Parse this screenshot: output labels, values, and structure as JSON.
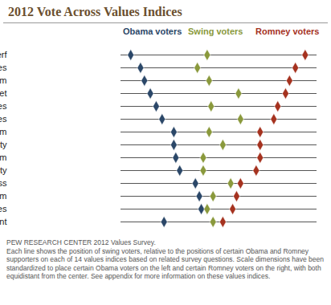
{
  "chart_data": {
    "type": "dot",
    "title": "2012 Vote Across Values Indices",
    "categories": [
      "Govt scope & perf",
      "Labor attitudes",
      "Environmentalism",
      "Social safety net",
      "Business attitudes",
      "Immigration attitudes",
      "Efficacy vs. fatalism",
      "National security",
      "Social conservatism",
      "Religiosity",
      "Govt responsiveness",
      "National optimism",
      "Personal finances",
      "Political engagement"
    ],
    "series": [
      {
        "name": "Obama voters",
        "color": "#2b4768",
        "values": [
          5,
          10,
          12,
          15,
          18,
          21,
          27,
          27,
          28,
          30,
          38,
          40,
          41,
          22
        ]
      },
      {
        "name": "Swing voters",
        "color": "#8a993c",
        "values": [
          44,
          39,
          45,
          60,
          46,
          61,
          45,
          52,
          42,
          42,
          56,
          47,
          44,
          47
        ]
      },
      {
        "name": "Romney voters",
        "color": "#a5321f",
        "values": [
          94,
          89,
          86,
          84,
          80,
          78,
          71,
          71,
          71,
          69,
          61,
          59,
          57,
          52
        ]
      }
    ],
    "xlim": [
      0,
      100
    ],
    "tick_labels": "y",
    "marker": "diamond",
    "source": "PEW RESEARCH CENTER 2012 Values Survey.",
    "note": "Each line shows the position of swing voters, relative to the positions of certain Obama and Romney supporters on each of 14 values indices based on related survey questions. Scale dimensions have been standardized to place certain Obama voters on the left and certain Romney voters on the right, with both equidistant from the center. See appendix for more information on these values indices."
  }
}
